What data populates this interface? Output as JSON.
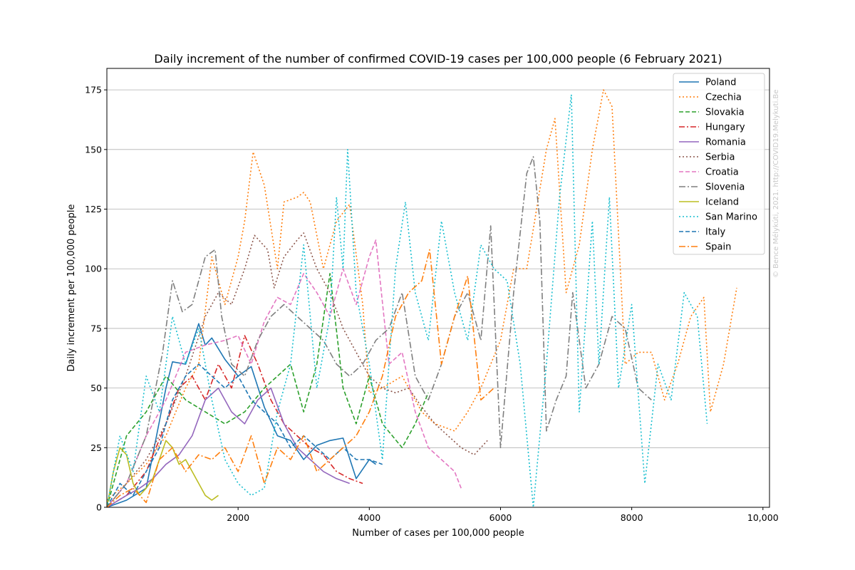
{
  "chart_data": {
    "type": "line",
    "title": "Daily increment of the number of confirmed COVID-19 cases per 100,000 people (6 February 2021)",
    "xlabel": "Number of cases per 100,000 people",
    "ylabel": "Daily increment per 100,000 people",
    "xlim": [
      0,
      10100
    ],
    "ylim": [
      0,
      184
    ],
    "xticks": [
      2000,
      4000,
      6000,
      8000,
      10000
    ],
    "xtick_labels": [
      "2000",
      "4000",
      "6000",
      "8000",
      "10,000"
    ],
    "yticks": [
      0,
      25,
      50,
      75,
      100,
      125,
      150,
      175
    ],
    "ytick_labels": [
      "0",
      "25",
      "50",
      "75",
      "100",
      "125",
      "150",
      "175"
    ],
    "grid": "horizontal",
    "legend_position": "top-right",
    "watermark": "© Bence Mélykúti, 2021. http://COVID19.Melykuti.Be",
    "series": [
      {
        "name": "Poland",
        "color": "#1f77b4",
        "dash": "",
        "x": [
          0,
          300,
          600,
          900,
          1000,
          1200,
          1400,
          1500,
          1600,
          1800,
          2000,
          2200,
          2400,
          2600,
          2800,
          3000,
          3200,
          3400,
          3600,
          3800,
          4000,
          4100
        ],
        "y": [
          0,
          3,
          8,
          50,
          61,
          60,
          77,
          68,
          71,
          62,
          55,
          59,
          42,
          30,
          28,
          20,
          26,
          28,
          29,
          12,
          20,
          18
        ]
      },
      {
        "name": "Czechia",
        "color": "#ff7f0e",
        "dash": "2,3",
        "x": [
          0,
          300,
          600,
          900,
          1200,
          1400,
          1600,
          1800,
          2000,
          2100,
          2230,
          2400,
          2600,
          2700,
          2900,
          3000,
          3100,
          3300,
          3500,
          3700,
          3900,
          4000,
          4200,
          4500,
          4800,
          5000,
          5300,
          5500,
          5700,
          6000,
          6200,
          6400,
          6700,
          6830,
          7000,
          7200,
          7400,
          7570,
          7700,
          7900,
          8100,
          8300,
          8500,
          8700,
          8900,
          9100,
          9200,
          9400,
          9600
        ],
        "y": [
          3,
          10,
          18,
          30,
          50,
          60,
          105,
          85,
          105,
          120,
          149,
          135,
          100,
          128,
          130,
          132,
          128,
          100,
          120,
          127,
          85,
          48,
          50,
          55,
          40,
          35,
          32,
          40,
          50,
          70,
          100,
          100,
          150,
          163,
          90,
          110,
          150,
          175,
          168,
          60,
          65,
          65,
          45,
          60,
          80,
          88,
          40,
          60,
          92
        ]
      },
      {
        "name": "Slovakia",
        "color": "#2ca02c",
        "dash": "6,3",
        "x": [
          0,
          300,
          600,
          900,
          1200,
          1500,
          1800,
          2100,
          2400,
          2600,
          2800,
          3000,
          3200,
          3400,
          3600,
          3800,
          4000,
          4200,
          4500,
          4700,
          4900
        ],
        "y": [
          0,
          30,
          40,
          55,
          45,
          40,
          35,
          40,
          50,
          55,
          60,
          40,
          60,
          98,
          50,
          35,
          55,
          35,
          25,
          35,
          48
        ]
      },
      {
        "name": "Hungary",
        "color": "#d62728",
        "dash": "8,3,2,3",
        "x": [
          0,
          300,
          600,
          900,
          1100,
          1300,
          1500,
          1700,
          1900,
          2100,
          2300,
          2500,
          2700,
          2900,
          3100,
          3300,
          3500,
          3700,
          3900
        ],
        "y": [
          0,
          5,
          15,
          35,
          50,
          55,
          45,
          60,
          50,
          72,
          60,
          45,
          35,
          30,
          25,
          22,
          15,
          12,
          10
        ]
      },
      {
        "name": "Romania",
        "color": "#9467bd",
        "dash": "",
        "x": [
          0,
          300,
          500,
          700,
          900,
          1100,
          1300,
          1500,
          1700,
          1900,
          2100,
          2300,
          2500,
          2700,
          2900,
          3100,
          3300,
          3500,
          3700
        ],
        "y": [
          0,
          5,
          8,
          12,
          18,
          22,
          30,
          45,
          50,
          40,
          35,
          45,
          50,
          35,
          25,
          20,
          15,
          12,
          10
        ]
      },
      {
        "name": "Serbia",
        "color": "#8c564b",
        "dash": "2,3",
        "x": [
          0,
          300,
          600,
          900,
          1200,
          1500,
          1700,
          1900,
          2100,
          2250,
          2450,
          2550,
          2700,
          2900,
          3000,
          3200,
          3400,
          3600,
          3800,
          4000,
          4200,
          4400,
          4600,
          4800,
          5000,
          5200,
          5400,
          5600,
          5800
        ],
        "y": [
          0,
          10,
          20,
          35,
          55,
          80,
          90,
          85,
          100,
          114,
          108,
          92,
          105,
          112,
          115,
          100,
          90,
          75,
          65,
          55,
          50,
          48,
          50,
          42,
          35,
          30,
          25,
          22,
          28
        ]
      },
      {
        "name": "Croatia",
        "color": "#e377c2",
        "dash": "6,3",
        "x": [
          0,
          300,
          600,
          900,
          1200,
          1500,
          1800,
          2000,
          2200,
          2400,
          2600,
          2800,
          3000,
          3200,
          3400,
          3600,
          3800,
          4000,
          4100,
          4300,
          4500,
          4700,
          4900,
          5100,
          5300,
          5400
        ],
        "y": [
          0,
          10,
          30,
          45,
          65,
          68,
          70,
          72,
          60,
          78,
          88,
          85,
          98,
          90,
          80,
          100,
          85,
          105,
          112,
          60,
          65,
          40,
          25,
          20,
          15,
          8
        ]
      },
      {
        "name": "Slovenia",
        "color": "#7f7f7f",
        "dash": "9,3,2,3",
        "x": [
          0,
          300,
          600,
          850,
          1000,
          1150,
          1300,
          1500,
          1650,
          1750,
          1900,
          2100,
          2300,
          2500,
          2700,
          2900,
          3100,
          3300,
          3500,
          3700,
          3900,
          4100,
          4300,
          4500,
          4700,
          4900,
          5100,
          5300,
          5500,
          5700,
          5850,
          6000,
          6200,
          6400,
          6500,
          6600,
          6700,
          6850,
          7000,
          7100,
          7300,
          7500,
          7700,
          7900,
          8100,
          8300
        ],
        "y": [
          0,
          10,
          30,
          65,
          95,
          82,
          85,
          105,
          108,
          80,
          60,
          55,
          70,
          80,
          85,
          80,
          75,
          70,
          60,
          55,
          60,
          70,
          75,
          90,
          55,
          45,
          60,
          80,
          90,
          70,
          118,
          25,
          90,
          140,
          147,
          120,
          32,
          45,
          55,
          90,
          50,
          60,
          80,
          75,
          50,
          45
        ]
      },
      {
        "name": "Iceland",
        "color": "#bcbd22",
        "dash": "",
        "x": [
          0,
          100,
          200,
          300,
          400,
          500,
          600,
          700,
          800,
          900,
          1000,
          1100,
          1200,
          1300,
          1400,
          1500,
          1600,
          1700
        ],
        "y": [
          0,
          15,
          25,
          22,
          10,
          5,
          8,
          12,
          20,
          28,
          25,
          18,
          20,
          15,
          10,
          5,
          3,
          5
        ]
      },
      {
        "name": "San Marino",
        "color": "#17becf",
        "dash": "2,3",
        "x": [
          0,
          200,
          400,
          600,
          800,
          1000,
          1200,
          1400,
          1600,
          1800,
          2000,
          2200,
          2400,
          2600,
          2800,
          3000,
          3200,
          3400,
          3500,
          3600,
          3670,
          3800,
          4000,
          4200,
          4400,
          4550,
          4700,
          4900,
          5100,
          5300,
          5500,
          5700,
          5900,
          6100,
          6300,
          6500,
          6700,
          6900,
          7080,
          7200,
          7400,
          7500,
          7660,
          7800,
          8000,
          8200,
          8400,
          8600,
          8800,
          9000,
          9150
        ],
        "y": [
          0,
          30,
          15,
          55,
          40,
          80,
          60,
          75,
          45,
          20,
          10,
          5,
          8,
          40,
          60,
          110,
          50,
          80,
          130,
          100,
          150,
          90,
          60,
          20,
          100,
          128,
          90,
          70,
          120,
          90,
          70,
          110,
          100,
          95,
          60,
          0,
          60,
          130,
          173,
          40,
          120,
          60,
          130,
          50,
          85,
          10,
          60,
          45,
          90,
          80,
          35
        ]
      },
      {
        "name": "Italy",
        "color": "#1f77b4",
        "dash": "6,3",
        "x": [
          0,
          200,
          400,
          600,
          800,
          1000,
          1200,
          1400,
          1600,
          1800,
          2000,
          2200,
          2400,
          2600,
          2800,
          3000,
          3200,
          3400,
          3600,
          3800,
          4000,
          4200
        ],
        "y": [
          0,
          10,
          5,
          15,
          25,
          45,
          55,
          60,
          55,
          50,
          55,
          45,
          40,
          35,
          25,
          30,
          25,
          20,
          25,
          20,
          20,
          18
        ]
      },
      {
        "name": "Spain",
        "color": "#ff7f0e",
        "dash": "9,3,2,3",
        "x": [
          0,
          200,
          400,
          600,
          800,
          1000,
          1200,
          1400,
          1600,
          1800,
          2000,
          2200,
          2400,
          2600,
          2800,
          3000,
          3200,
          3400,
          3600,
          3800,
          4000,
          4200,
          4400,
          4600,
          4800,
          4920,
          5100,
          5300,
          5500,
          5700,
          5900
        ],
        "y": [
          0,
          5,
          8,
          2,
          20,
          25,
          15,
          22,
          20,
          25,
          15,
          30,
          10,
          25,
          20,
          30,
          15,
          20,
          25,
          30,
          40,
          55,
          80,
          90,
          95,
          108,
          60,
          80,
          97,
          45,
          50
        ]
      }
    ]
  }
}
